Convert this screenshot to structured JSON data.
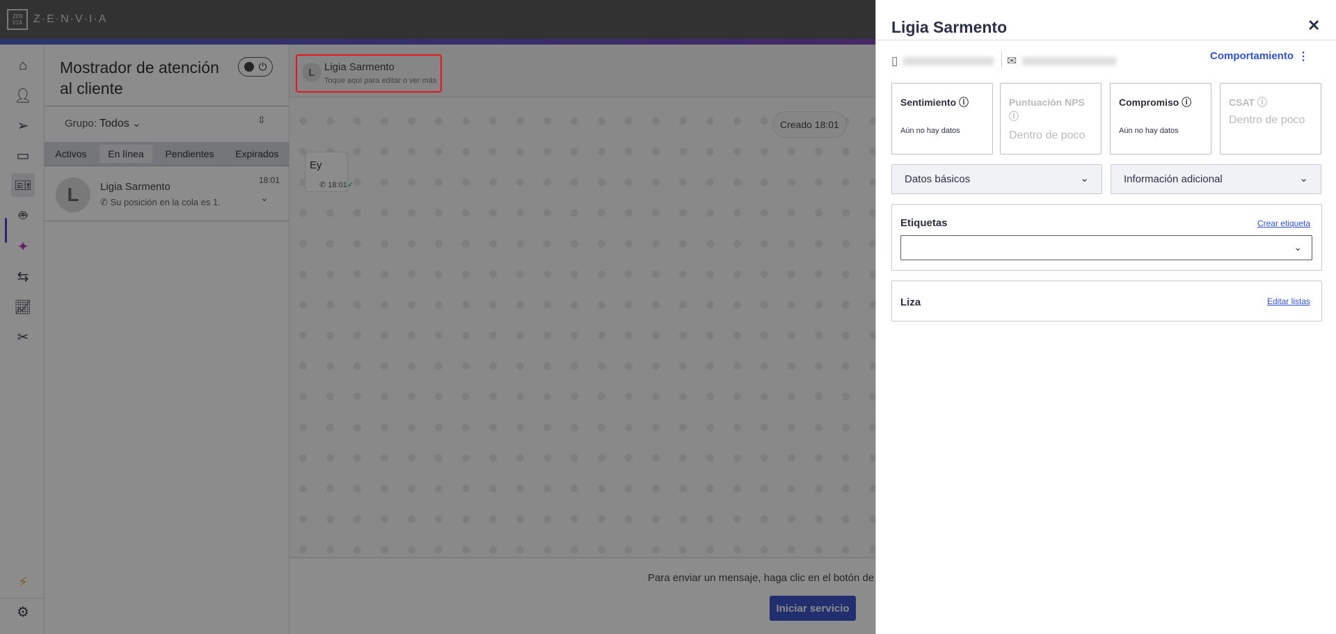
{
  "topbar": {
    "logo_text": "Z·E·N·V·I·A",
    "logo_mark": "ZEN VIA"
  },
  "nav": {
    "items": [
      {
        "icon": "home-icon"
      },
      {
        "icon": "contacts-icon"
      },
      {
        "icon": "send-icon"
      },
      {
        "icon": "chat-icon"
      },
      {
        "icon": "ticket-icon",
        "active": true
      },
      {
        "icon": "bot-icon"
      },
      {
        "icon": "sparkles-icon"
      },
      {
        "icon": "flow-icon"
      },
      {
        "icon": "chart-icon"
      },
      {
        "icon": "tools-icon"
      }
    ],
    "bottom": [
      {
        "icon": "lightning-icon"
      },
      {
        "icon": "gear-icon"
      }
    ],
    "colors": {
      "active": "#5b3fd0",
      "sparkles": "#b23ab8",
      "lightning": "#e0b020"
    }
  },
  "list": {
    "title": "Mostrador de atención al cliente",
    "group_label": "Grupo:",
    "group_value": "Todos",
    "tabs": [
      {
        "label": "Activos"
      },
      {
        "label": "En línea",
        "active": true
      },
      {
        "label": "Pendientes"
      },
      {
        "label": "Expirados"
      }
    ],
    "conversation": {
      "initial": "L",
      "name": "Ligia Sarmento",
      "message": "Su posición en la cola es 1.",
      "time": "18:01"
    }
  },
  "chat": {
    "header_initial": "L",
    "header_name": "Ligia Sarmento",
    "header_sub": "Toque aquí para editar o ver más",
    "created": "Creado 18:01",
    "message_text": "Ey",
    "message_time": "18:01",
    "composer_text": "Para enviar un mensaje, haga clic en el botón de al",
    "start_button": "Iniciar servicio",
    "accent": "#3f57c8"
  },
  "panel": {
    "title": "Ligia Sarmento",
    "close": "✕",
    "behaviour_link": "Comportamiento",
    "cards": [
      {
        "title": "Sentimiento",
        "value": "Aún no hay datos",
        "disabled": false
      },
      {
        "title": "Puntuación NPS",
        "value": "Dentro de poco",
        "disabled": true
      },
      {
        "title": "Compromiso",
        "value": "Aún no hay datos",
        "disabled": false
      },
      {
        "title": "CSAT",
        "value": "Dentro de poco",
        "disabled": true
      }
    ],
    "accordions": [
      {
        "label": "Datos básicos"
      },
      {
        "label": "Información adicional"
      }
    ],
    "tags": {
      "title": "Etiquetas",
      "link": "Crear etiqueta",
      "value": ""
    },
    "lists": {
      "title": "Liza",
      "link": "Editar listas"
    },
    "link_color": "#2f50e0"
  }
}
